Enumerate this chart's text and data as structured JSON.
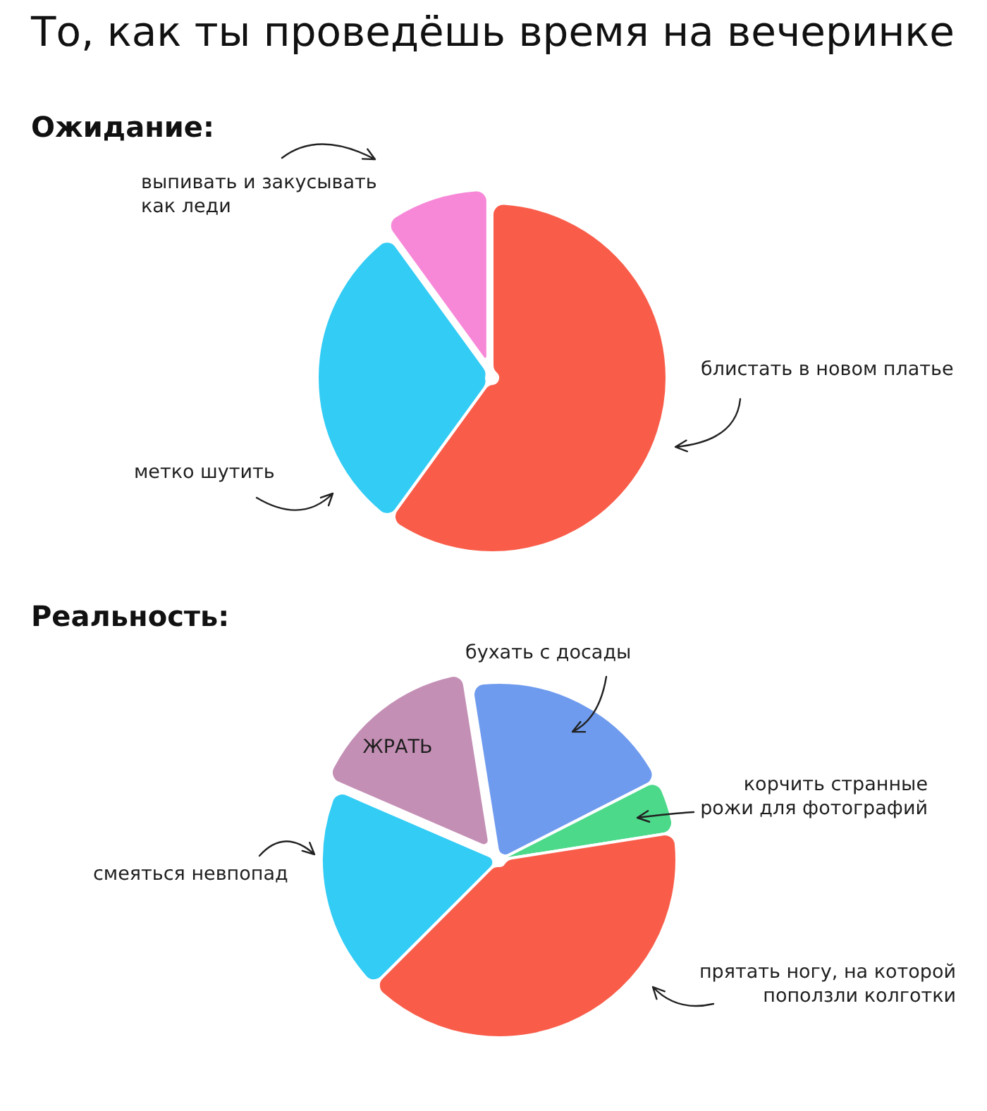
{
  "chart_data": [
    {
      "type": "pie",
      "title": "То, как ты проведёшь время на вечеринке",
      "subtitle": "Ожидание:",
      "categories": [
        "блистать в новом платье",
        "метко шутить",
        "выпивать и закусывать как леди"
      ],
      "values": [
        60,
        30,
        10
      ],
      "colors": [
        "#f95d4a",
        "#33ccf5",
        "#f788d8"
      ]
    },
    {
      "type": "pie",
      "subtitle": "Реальность:",
      "categories": [
        "бухать с досады",
        "корчить странные рожи для фотографий",
        "прятать ногу, на которой поползли колготки",
        "смеяться невпопад",
        "ЖРАТЬ"
      ],
      "values": [
        20,
        5,
        40,
        19,
        16
      ],
      "colors": [
        "#6f9bef",
        "#4cd98a",
        "#f95d4a",
        "#33ccf5",
        "#c48fb5"
      ]
    }
  ]
}
